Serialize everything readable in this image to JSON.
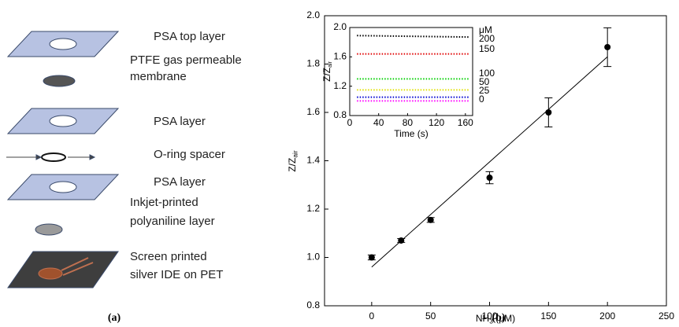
{
  "diagram": {
    "layers": [
      {
        "lines": [
          "PSA top layer"
        ]
      },
      {
        "lines": [
          "PTFE gas permeable",
          "membrane"
        ]
      },
      {
        "lines": [
          "PSA layer"
        ]
      },
      {
        "lines": [
          "O-ring spacer"
        ]
      },
      {
        "lines": [
          "PSA layer"
        ]
      },
      {
        "lines": [
          "Inkjet-printed",
          "polyaniline layer"
        ]
      },
      {
        "lines": [
          "Screen printed",
          "silver IDE on PET"
        ]
      }
    ],
    "caption": "(a)"
  },
  "caption_b": "(b)",
  "chart_data": [
    {
      "type": "scatter",
      "xlabel": {
        "text": "NH",
        "sub": "3",
        "rest": " (μM)"
      },
      "ylabel": {
        "text": "Z/Z",
        "sub": "air"
      },
      "x": [
        0,
        25,
        50,
        100,
        150,
        200
      ],
      "values": [
        1.0,
        1.07,
        1.155,
        1.33,
        1.6,
        1.87
      ],
      "errors": [
        0.01,
        0.008,
        0.01,
        0.025,
        0.06,
        0.08
      ],
      "fit": {
        "x": [
          0,
          200
        ],
        "values": [
          0.96,
          1.83
        ]
      },
      "color": "#000000",
      "xlim": [
        -40,
        250
      ],
      "xticks": [
        0,
        50,
        100,
        150,
        200,
        250
      ],
      "ylim": [
        0.8,
        2.0
      ],
      "yticks": [
        {
          "value": 0.8,
          "label": "0.8"
        },
        {
          "value": 1.0,
          "label": "1.0"
        },
        {
          "value": 1.2,
          "label": "1.2"
        },
        {
          "value": 1.4,
          "label": "1.4"
        },
        {
          "value": 1.6,
          "label": "1.6"
        },
        {
          "value": 1.8,
          "label": "1.8"
        },
        {
          "value": 2.0,
          "label": "2.0"
        }
      ]
    },
    {
      "type": "line",
      "xlabel": "Time (s)",
      "ylabel": {
        "text": "Z/Z",
        "sub": "air"
      },
      "legend_title": "μM",
      "x": [
        10,
        165
      ],
      "series": [
        {
          "name": "200",
          "color": "#000000",
          "values": [
            1.89,
            1.87
          ]
        },
        {
          "name": "150",
          "color": "#e00000",
          "values": [
            1.64,
            1.64
          ]
        },
        {
          "name": "100",
          "color": "#00d000",
          "values": [
            1.3,
            1.3
          ]
        },
        {
          "name": "50",
          "color": "#e0e000",
          "values": [
            1.15,
            1.15
          ]
        },
        {
          "name": "25",
          "color": "#0000d0",
          "values": [
            1.05,
            1.05
          ]
        },
        {
          "name": "0",
          "color": "#ff00ff",
          "values": [
            1.0,
            1.0
          ]
        }
      ],
      "xlim": [
        0,
        170
      ],
      "xticks": [
        0,
        40,
        80,
        120,
        160
      ],
      "ylim": [
        0.8,
        2.0
      ],
      "yticks": [
        {
          "value": 0.8,
          "label": "0.8"
        },
        {
          "value": 1.2,
          "label": "1.2"
        },
        {
          "value": 1.6,
          "label": "1.6"
        },
        {
          "value": 2.0,
          "label": "2.0"
        }
      ]
    }
  ]
}
